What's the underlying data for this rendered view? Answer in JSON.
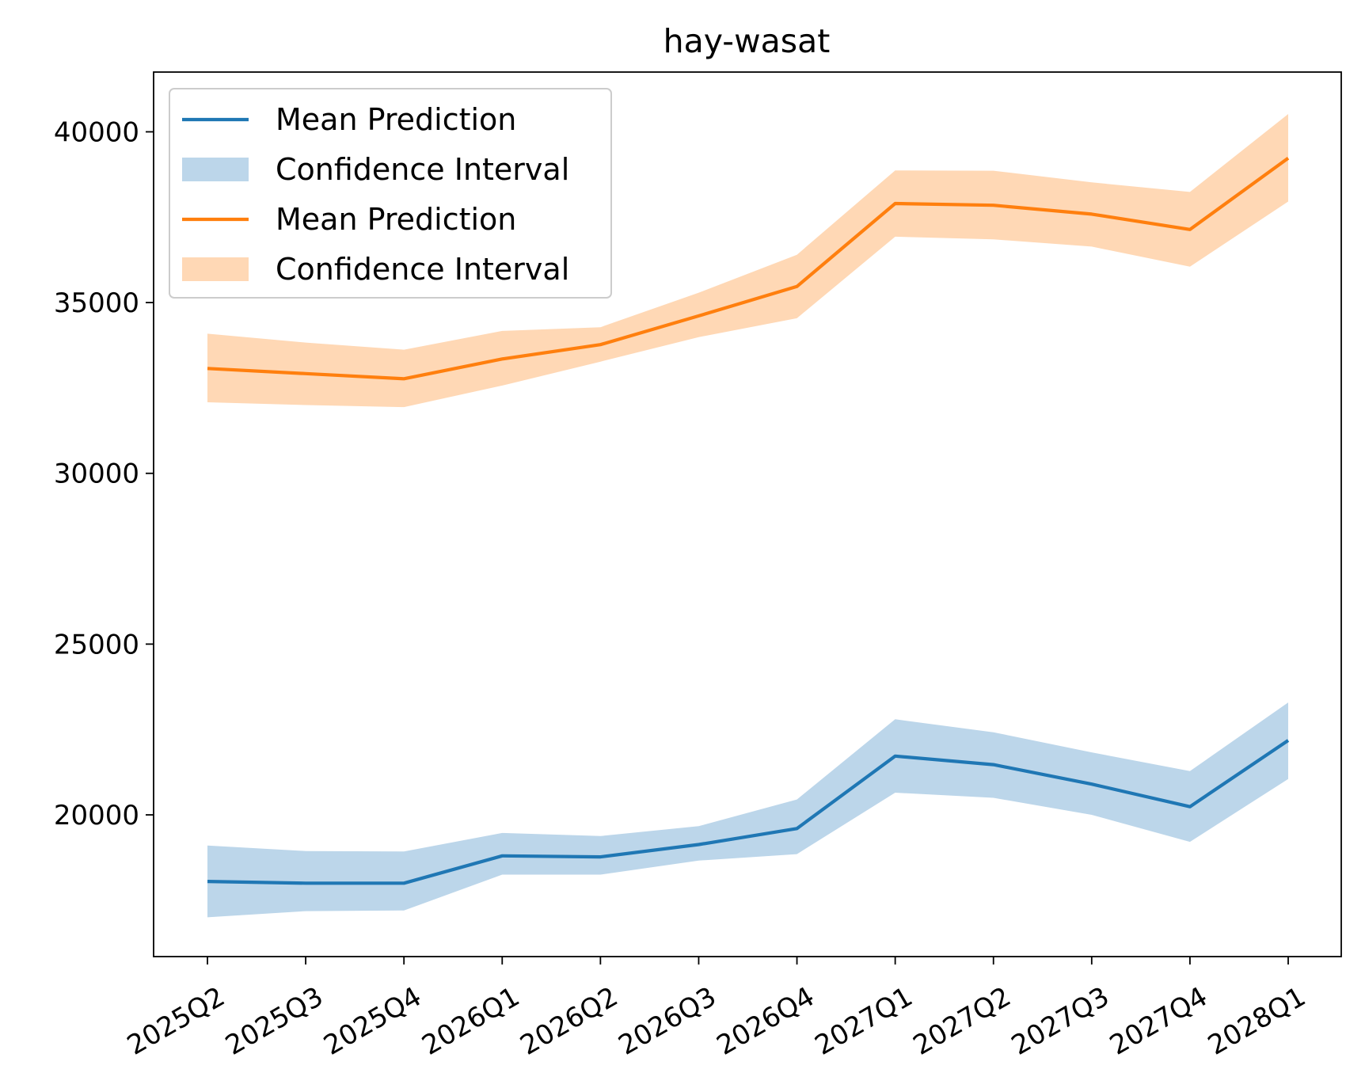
{
  "chart_data": {
    "type": "line",
    "title": "hay-wasat",
    "xlabel": "",
    "ylabel": "",
    "categories": [
      "2025Q2",
      "2025Q3",
      "2025Q4",
      "2026Q1",
      "2026Q2",
      "2026Q3",
      "2026Q4",
      "2027Q1",
      "2027Q2",
      "2027Q3",
      "2027Q4",
      "2028Q1"
    ],
    "ylim": [
      15850,
      41750
    ],
    "yticks": [
      20000,
      25000,
      30000,
      35000,
      40000
    ],
    "grid": false,
    "legend_position": "upper-left",
    "series": [
      {
        "name": "Mean Prediction",
        "band_name": "Confidence Interval",
        "color": "#1f77b4",
        "band_color": "#bcd6ea",
        "values": [
          18050,
          18000,
          18000,
          18800,
          18770,
          19130,
          19600,
          21720,
          21470,
          20900,
          20240,
          22180
        ],
        "lower": [
          17000,
          17180,
          17200,
          18250,
          18250,
          18660,
          18850,
          20650,
          20500,
          20000,
          19210,
          21050
        ],
        "upper": [
          19100,
          18940,
          18930,
          19470,
          19380,
          19670,
          20450,
          22800,
          22420,
          21830,
          21280,
          23290
        ]
      },
      {
        "name": "Mean Prediction",
        "band_name": "Confidence Interval",
        "color": "#ff7f0e",
        "band_color": "#ffd8b5",
        "values": [
          33070,
          32920,
          32770,
          33350,
          33770,
          34610,
          35470,
          37900,
          37850,
          37590,
          37140,
          39230
        ],
        "lower": [
          32080,
          32000,
          31940,
          32570,
          33270,
          33990,
          34540,
          36930,
          36850,
          36640,
          36050,
          37960
        ],
        "upper": [
          34090,
          33830,
          33620,
          34170,
          34280,
          35290,
          36400,
          38870,
          38860,
          38520,
          38240,
          40520
        ]
      }
    ]
  }
}
